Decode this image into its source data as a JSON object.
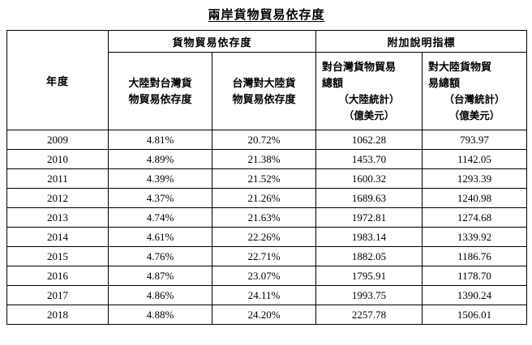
{
  "chart_data": {
    "type": "table",
    "title": "兩岸貨物貿易依存度",
    "header": {
      "year": "年度",
      "group_dependency": "貨物貿易依存度",
      "group_indicators": "附加說明指標",
      "mainland_dependency_lines": [
        "大陸對台灣貨",
        "物貿易依存度"
      ],
      "taiwan_dependency_lines": [
        "台灣對大陸貨",
        "物貿易依存度"
      ],
      "taiwan_total_lines": [
        "對台灣貨物貿易",
        "總額",
        "（大陸統計）",
        "（億美元）"
      ],
      "mainland_total_lines": [
        "對大陸貨物貿",
        "易總額",
        "（台灣統計）",
        "（億美元）"
      ]
    },
    "columns": [
      "年度",
      "大陸對台灣貨物貿易依存度",
      "台灣對大陸貨物貿易依存度",
      "對台灣貨物貿易總額（大陸統計）（億美元）",
      "對大陸貨物貿易總額（台灣統計）（億美元）"
    ],
    "rows": [
      [
        "2009",
        "4.81%",
        "20.72%",
        "1062.28",
        "793.97"
      ],
      [
        "2010",
        "4.89%",
        "21.38%",
        "1453.70",
        "1142.05"
      ],
      [
        "2011",
        "4.39%",
        "21.52%",
        "1600.32",
        "1293.39"
      ],
      [
        "2012",
        "4.37%",
        "21.26%",
        "1689.63",
        "1240.98"
      ],
      [
        "2013",
        "4.74%",
        "21.63%",
        "1972.81",
        "1274.68"
      ],
      [
        "2014",
        "4.61%",
        "22.26%",
        "1983.14",
        "1339.92"
      ],
      [
        "2015",
        "4.76%",
        "22.71%",
        "1882.05",
        "1186.76"
      ],
      [
        "2016",
        "4.87%",
        "23.07%",
        "1795.91",
        "1178.70"
      ],
      [
        "2017",
        "4.86%",
        "24.11%",
        "1993.75",
        "1390.24"
      ],
      [
        "2018",
        "4.88%",
        "24.20%",
        "2257.78",
        "1506.01"
      ]
    ],
    "text_color": "#000000",
    "border_color": "#000000",
    "background_color": "#ffffff"
  }
}
